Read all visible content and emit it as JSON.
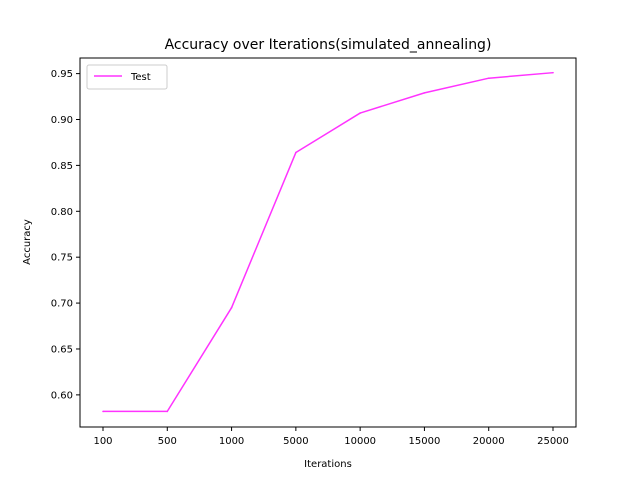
{
  "chart_data": {
    "type": "line",
    "title": "Accuracy over Iterations(simulated_annealing)",
    "xlabel": "Iterations",
    "ylabel": "Accuracy",
    "categories": [
      "100",
      "500",
      "1000",
      "5000",
      "10000",
      "15000",
      "20000",
      "25000"
    ],
    "series": [
      {
        "name": "Test",
        "color": "#ff33ff",
        "values": [
          0.582,
          0.582,
          0.695,
          0.864,
          0.907,
          0.929,
          0.945,
          0.951
        ]
      }
    ],
    "ylim": [
      0.565,
      0.967
    ],
    "yticks": [
      0.6,
      0.65,
      0.7,
      0.75,
      0.8,
      0.85,
      0.9,
      0.95
    ],
    "ytick_labels": [
      "0.60",
      "0.65",
      "0.70",
      "0.75",
      "0.80",
      "0.85",
      "0.90",
      "0.95"
    ],
    "grid": false,
    "legend_position": "top-left"
  }
}
